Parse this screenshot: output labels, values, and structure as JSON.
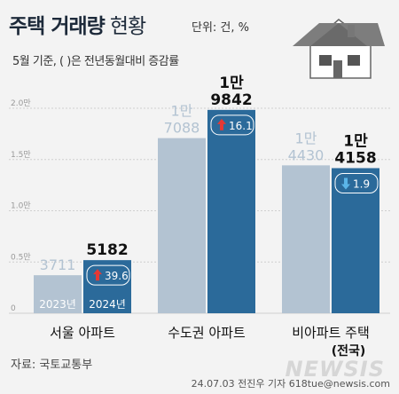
{
  "header": {
    "title": "주택 거래량",
    "title_sub": "현황",
    "unit": "단위: 건, %",
    "subtitle": "5월 기준, ( )은 전년동월대비 증감률"
  },
  "footer": {
    "source": "자료: 국토교통부",
    "credit": "24.07.03 전진우 기자 618tue@newsis.com",
    "watermark": "NEWSIS"
  },
  "colors": {
    "bar_2023": "#b3c3d2",
    "bar_2024": "#2b6a9a",
    "text_2023": "#b3c3d2",
    "text_2024": "#111111",
    "up": "#e53935",
    "down": "#5bb5e8"
  },
  "chart_data": {
    "type": "bar",
    "categories": [
      "서울 아파트",
      "수도권 아파트",
      "비아파트 주택"
    ],
    "category_sub": [
      "",
      "",
      "(전국)"
    ],
    "series": [
      {
        "name": "2023년",
        "values": [
          3711,
          17088,
          14430
        ],
        "labels": [
          "3711",
          "1만\n7088",
          "1만\n4430"
        ]
      },
      {
        "name": "2024년",
        "values": [
          5182,
          19842,
          14158
        ],
        "labels": [
          "5182",
          "1만\n9842",
          "1만\n4158"
        ]
      }
    ],
    "changes": [
      {
        "direction": "up",
        "value": "39.6"
      },
      {
        "direction": "up",
        "value": "16.1"
      },
      {
        "direction": "down",
        "value": "1.9"
      }
    ],
    "y_ticks": [
      "0",
      "0.5만",
      "1.0만",
      "1.5만",
      "2.0만"
    ],
    "ylim": [
      0,
      20000
    ]
  }
}
